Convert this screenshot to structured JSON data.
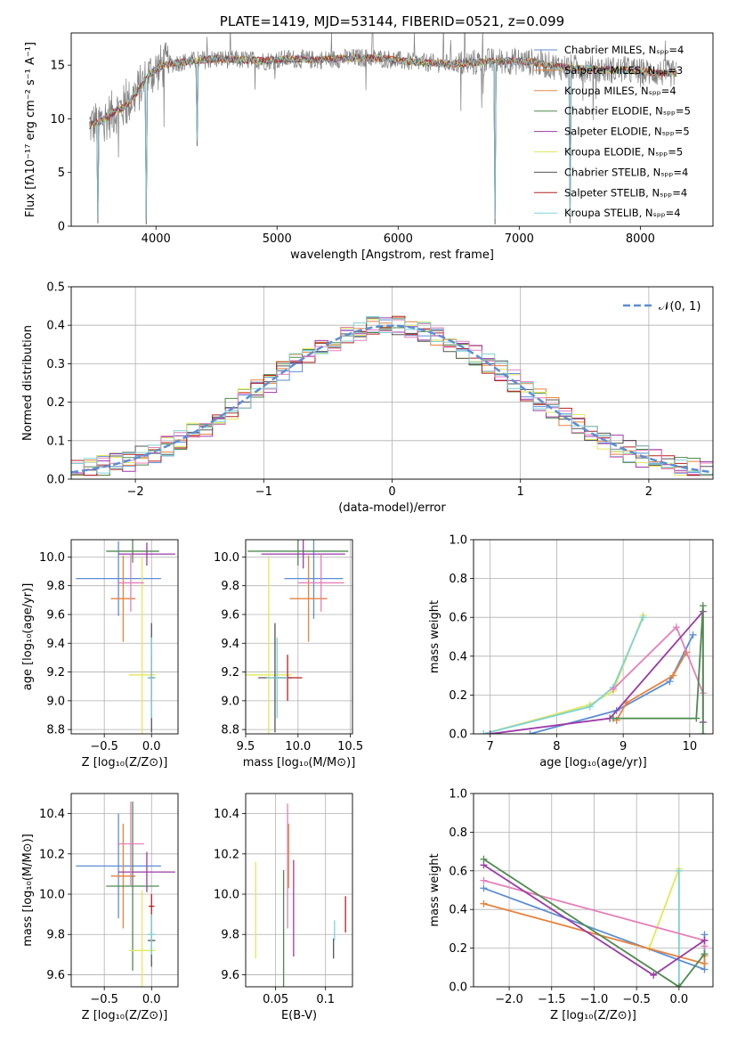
{
  "colors": {
    "Chabrier MILES": "#5b8ed6",
    "Salpeter MILES": "#e8823b",
    "Kroupa MILES": "#e38a43",
    "Chabrier ELODIE": "#4e8a4e",
    "Salpeter ELODIE": "#9b3aa8",
    "Kroupa ELODIE": "#e2e85a",
    "Chabrier STELIB": "#555555",
    "Salpeter STELIB": "#b22222",
    "Kroupa STELIB": "#7dd3d8",
    "Pink": "#e67fb9",
    "Gaussian": "#5b8ed6",
    "data": "#808080"
  },
  "chart_data": [
    {
      "id": "spectrum",
      "type": "line",
      "title": "PLATE=1419, MJD=53144, FIBERID=0521, z=0.099",
      "xlabel": "wavelength [Angstrom, rest frame]",
      "ylabel": "Flux [fλ10⁻¹⁷ erg cm⁻² s⁻¹ A⁻¹]",
      "xlim": [
        3300,
        8600
      ],
      "ylim": [
        0,
        18
      ],
      "xticks": [
        4000,
        5000,
        6000,
        7000,
        8000
      ],
      "yticks": [
        0,
        5,
        10,
        15
      ],
      "grid": false,
      "legend_position": "right",
      "legend": [
        {
          "name": "Chabrier MILES, Nₛₚₚ=4",
          "color": "#5b8ed6"
        },
        {
          "name": "Salpeter MILES, Nₛₚₚ=3",
          "color": "#e8823b"
        },
        {
          "name": "Kroupa MILES, Nₛₚₚ=4",
          "color": "#e38a43"
        },
        {
          "name": "Chabrier ELODIE, Nₛₚₚ=5",
          "color": "#4e8a4e"
        },
        {
          "name": "Salpeter ELODIE, Nₛₚₚ=5",
          "color": "#9b3aa8"
        },
        {
          "name": "Kroupa ELODIE, Nₛₚₚ=5",
          "color": "#e2e85a"
        },
        {
          "name": "Chabrier STELIB, Nₛₚₚ=4",
          "color": "#555555"
        },
        {
          "name": "Salpeter STELIB, Nₛₚₚ=4",
          "color": "#b22222"
        },
        {
          "name": "Kroupa STELIB, Nₛₚₚ=4",
          "color": "#7dd3d8"
        }
      ],
      "continuum": {
        "x": [
          3450,
          3550,
          3650,
          3750,
          3850,
          3950,
          4050,
          4150,
          4300,
          4500,
          4700,
          4900,
          5100,
          5300,
          5500,
          5700,
          5900,
          6100,
          6300,
          6500,
          6700,
          6900,
          7100,
          7300,
          7500,
          7700,
          7900,
          8100,
          8300
        ],
        "y": [
          9.4,
          9.8,
          10.6,
          11.2,
          12.6,
          14.2,
          14.9,
          15.2,
          15.4,
          15.6,
          15.5,
          15.4,
          15.6,
          15.5,
          15.6,
          15.7,
          15.6,
          15.3,
          15.2,
          15.1,
          15.3,
          15.4,
          15.3,
          14.9,
          14.7,
          14.6,
          14.5,
          14.3,
          14.2
        ]
      },
      "dips": [
        {
          "x": 3520,
          "y": 0.3
        },
        {
          "x": 3920,
          "y": 0.2
        },
        {
          "x": 4340,
          "y": 7.5
        },
        {
          "x": 6800,
          "y": 0.2
        },
        {
          "x": 7420,
          "y": 0.3
        }
      ]
    },
    {
      "id": "residuals",
      "type": "histogram",
      "xlabel": "(data-model)/error",
      "ylabel": "Normed distribution",
      "xlim": [
        -2.5,
        2.5
      ],
      "ylim": [
        0,
        0.5
      ],
      "xticks": [
        -2,
        -1,
        0,
        1,
        2
      ],
      "yticks": [
        0.0,
        0.1,
        0.2,
        0.3,
        0.4,
        0.5
      ],
      "grid": true,
      "legend_position": "top-right",
      "gaussian_label": "𝒩(0, 1)"
    },
    {
      "id": "age-vs-Z",
      "type": "scatter",
      "xlabel": "Z [log₁₀(Z/Z⊙)]",
      "ylabel": "age  [log₁₀(age/yr)]",
      "xlim": [
        -0.85,
        0.28
      ],
      "ylim": [
        8.77,
        10.12
      ],
      "xticks": [
        -0.5,
        0.0
      ],
      "yticks": [
        8.8,
        9.0,
        9.2,
        9.4,
        9.6,
        9.8,
        10.0
      ],
      "grid": true,
      "points": [
        {
          "x": -0.35,
          "y": 9.85,
          "xerr": 0.45,
          "yerr": 0.26,
          "color": "#5b8ed6"
        },
        {
          "x": -0.3,
          "y": 9.71,
          "xerr": 0.13,
          "yerr": 0.3,
          "color": "#e8823b"
        },
        {
          "x": -0.2,
          "y": 10.04,
          "xerr": 0.28,
          "yerr": 0.08,
          "color": "#4e8a4e"
        },
        {
          "x": -0.05,
          "y": 10.02,
          "xerr": 0.3,
          "yerr": 0.08,
          "color": "#9b3aa8"
        },
        {
          "x": -0.1,
          "y": 9.18,
          "xerr": 0.14,
          "yerr": 0.82,
          "color": "#e2e85a"
        },
        {
          "x": 0.0,
          "y": 9.16,
          "xerr": 0.04,
          "yerr": 0.38,
          "color": "#555555"
        },
        {
          "x": 0.0,
          "y": 9.16,
          "xerr": 0.03,
          "yerr": 0.16,
          "color": "#b22222"
        },
        {
          "x": -0.22,
          "y": 9.82,
          "xerr": 0.14,
          "yerr": 0.2,
          "color": "#e67fb9"
        },
        {
          "x": 0.0,
          "y": 9.16,
          "xerr": 0.04,
          "yerr": 0.28,
          "color": "#7dd3d8"
        }
      ]
    },
    {
      "id": "age-vs-mass",
      "type": "scatter",
      "xlabel": "mass [log₁₀(M/M⊙)]",
      "ylabel": "",
      "xlim": [
        9.5,
        10.52
      ],
      "ylim": [
        8.77,
        10.12
      ],
      "xticks": [
        9.5,
        10.0,
        10.5
      ],
      "yticks": [
        8.8,
        9.0,
        9.2,
        9.4,
        9.6,
        9.8,
        10.0
      ],
      "grid": true,
      "points": [
        {
          "x": 10.15,
          "y": 9.85,
          "xerr": 0.28,
          "yerr": 0.28,
          "color": "#5b8ed6"
        },
        {
          "x": 10.1,
          "y": 9.71,
          "xerr": 0.18,
          "yerr": 0.3,
          "color": "#e8823b"
        },
        {
          "x": 10.0,
          "y": 10.04,
          "xerr": 0.48,
          "yerr": 0.1,
          "color": "#4e8a4e"
        },
        {
          "x": 10.05,
          "y": 10.02,
          "xerr": 0.4,
          "yerr": 0.1,
          "color": "#9b3aa8"
        },
        {
          "x": 9.72,
          "y": 9.18,
          "xerr": 0.22,
          "yerr": 0.82,
          "color": "#e2e85a"
        },
        {
          "x": 9.78,
          "y": 9.16,
          "xerr": 0.16,
          "yerr": 0.38,
          "color": "#555555"
        },
        {
          "x": 9.9,
          "y": 9.16,
          "xerr": 0.14,
          "yerr": 0.16,
          "color": "#b22222"
        },
        {
          "x": 10.22,
          "y": 9.82,
          "xerr": 0.22,
          "yerr": 0.2,
          "color": "#e67fb9"
        },
        {
          "x": 9.8,
          "y": 9.16,
          "xerr": 0.1,
          "yerr": 0.28,
          "color": "#7dd3d8"
        }
      ]
    },
    {
      "id": "massweight-vs-age",
      "type": "line",
      "xlabel": "age  [log₁₀(age/yr)]",
      "ylabel": "mass weight",
      "xlim": [
        6.75,
        10.35
      ],
      "ylim": [
        0,
        1.0
      ],
      "xticks": [
        7,
        8,
        9,
        10
      ],
      "yticks": [
        0.0,
        0.2,
        0.4,
        0.6,
        0.8,
        1.0
      ],
      "grid": true,
      "series": [
        {
          "color": "#e2e85a",
          "x": [
            6.9,
            8.5,
            8.85,
            9.3
          ],
          "y": [
            0.0,
            0.15,
            0.22,
            0.61
          ]
        },
        {
          "color": "#7dd3d8",
          "x": [
            6.9,
            8.5,
            8.85,
            9.3
          ],
          "y": [
            0.0,
            0.14,
            0.24,
            0.6
          ]
        },
        {
          "color": "#5b8ed6",
          "x": [
            7.6,
            8.9,
            9.7,
            10.05
          ],
          "y": [
            0.0,
            0.12,
            0.27,
            0.51
          ]
        },
        {
          "color": "#e8823b",
          "x": [
            8.9,
            9.05,
            9.75,
            9.95
          ],
          "y": [
            0.07,
            0.16,
            0.3,
            0.42
          ]
        },
        {
          "color": "#e67fb9",
          "x": [
            8.85,
            9.8,
            10.2
          ],
          "y": [
            0.23,
            0.55,
            0.21
          ]
        },
        {
          "color": "#9b3aa8",
          "x": [
            7.0,
            8.8,
            10.2,
            10.2
          ],
          "y": [
            0.0,
            0.08,
            0.63,
            0.06
          ]
        },
        {
          "color": "#4e8a4e",
          "x": [
            8.85,
            10.1,
            10.2,
            10.2
          ],
          "y": [
            0.08,
            0.08,
            0.66,
            0.0
          ]
        }
      ]
    },
    {
      "id": "mass-vs-Z",
      "type": "scatter",
      "xlabel": "Z [log₁₀(Z/Z⊙)]",
      "ylabel": "mass [log₁₀(M/M⊙)]",
      "xlim": [
        -0.85,
        0.28
      ],
      "ylim": [
        9.54,
        10.5
      ],
      "xticks": [
        -0.5,
        0.0
      ],
      "yticks": [
        9.6,
        9.8,
        10.0,
        10.2,
        10.4
      ],
      "grid": true,
      "points": [
        {
          "x": -0.35,
          "y": 10.14,
          "xerr": 0.45,
          "yerr": 0.26,
          "color": "#5b8ed6"
        },
        {
          "x": -0.3,
          "y": 10.09,
          "xerr": 0.13,
          "yerr": 0.26,
          "color": "#e8823b"
        },
        {
          "x": -0.2,
          "y": 10.04,
          "xerr": 0.28,
          "yerr": 0.42,
          "color": "#4e8a4e"
        },
        {
          "x": -0.05,
          "y": 10.11,
          "xerr": 0.3,
          "yerr": 0.1,
          "color": "#9b3aa8"
        },
        {
          "x": -0.1,
          "y": 9.72,
          "xerr": 0.14,
          "yerr": 0.3,
          "color": "#e2e85a"
        },
        {
          "x": 0.0,
          "y": 9.77,
          "xerr": 0.04,
          "yerr": 0.13,
          "color": "#555555"
        },
        {
          "x": 0.0,
          "y": 9.94,
          "xerr": 0.03,
          "yerr": 0.06,
          "color": "#b22222"
        },
        {
          "x": -0.22,
          "y": 10.25,
          "xerr": 0.14,
          "yerr": 0.21,
          "color": "#e67fb9"
        },
        {
          "x": 0.0,
          "y": 9.8,
          "xerr": 0.04,
          "yerr": 0.1,
          "color": "#7dd3d8"
        }
      ]
    },
    {
      "id": "mass-vs-EBV",
      "type": "scatter",
      "xlabel": "E(B-V)",
      "ylabel": "",
      "xlim": [
        0.02,
        0.127
      ],
      "ylim": [
        9.54,
        10.5
      ],
      "xticks": [
        0.05,
        0.1
      ],
      "yticks": [
        9.6,
        9.8,
        10.0,
        10.2,
        10.4
      ],
      "grid": true,
      "points": [
        {
          "x": 0.03,
          "y": 9.92,
          "xerr": 0,
          "yerr": 0.24,
          "color": "#e2e85a"
        },
        {
          "x": 0.058,
          "y": 9.82,
          "xerr": 0,
          "yerr": 0.3,
          "color": "#4e8a4e"
        },
        {
          "x": 0.062,
          "y": 10.14,
          "xerr": 0,
          "yerr": 0.31,
          "color": "#e67fb9"
        },
        {
          "x": 0.063,
          "y": 10.19,
          "xerr": 0,
          "yerr": 0.16,
          "color": "#e8823b"
        },
        {
          "x": 0.068,
          "y": 9.93,
          "xerr": 0,
          "yerr": 0.24,
          "color": "#9b3aa8"
        },
        {
          "x": 0.108,
          "y": 9.73,
          "xerr": 0,
          "yerr": 0.05,
          "color": "#555555"
        },
        {
          "x": 0.109,
          "y": 9.82,
          "xerr": 0,
          "yerr": 0.05,
          "color": "#7dd3d8"
        },
        {
          "x": 0.12,
          "y": 9.9,
          "xerr": 0,
          "yerr": 0.09,
          "color": "#b22222"
        }
      ]
    },
    {
      "id": "massweight-vs-Z",
      "type": "line",
      "xlabel": "Z [log₁₀(Z/Z⊙)]",
      "ylabel": "mass weight",
      "xlim": [
        -2.42,
        0.4
      ],
      "ylim": [
        0,
        1.0
      ],
      "xticks": [
        -2.0,
        -1.5,
        -1.0,
        -0.5,
        0.0
      ],
      "yticks": [
        0.0,
        0.2,
        0.4,
        0.6,
        0.8,
        1.0
      ],
      "grid": true,
      "series": [
        {
          "color": "#e2e85a",
          "x": [
            -0.35,
            0.0,
            0.0
          ],
          "y": [
            0.2,
            0.61,
            0.0
          ]
        },
        {
          "color": "#7dd3d8",
          "x": [
            0.0,
            0.0
          ],
          "y": [
            0.6,
            0.0
          ]
        },
        {
          "color": "#5b8ed6",
          "x": [
            -2.3,
            0.3,
            0.3
          ],
          "y": [
            0.51,
            0.09,
            0.27
          ]
        },
        {
          "color": "#e8823b",
          "x": [
            -2.3,
            0.3,
            0.3
          ],
          "y": [
            0.43,
            0.12,
            0.16
          ]
        },
        {
          "color": "#e67fb9",
          "x": [
            -2.3,
            0.3,
            0.3
          ],
          "y": [
            0.55,
            0.24,
            0.21
          ]
        },
        {
          "color": "#9b3aa8",
          "x": [
            -2.3,
            -0.3,
            0.3
          ],
          "y": [
            0.63,
            0.06,
            0.24
          ]
        },
        {
          "color": "#4e8a4e",
          "x": [
            -2.3,
            0.0,
            0.3
          ],
          "y": [
            0.66,
            0.0,
            0.17
          ]
        }
      ]
    }
  ]
}
